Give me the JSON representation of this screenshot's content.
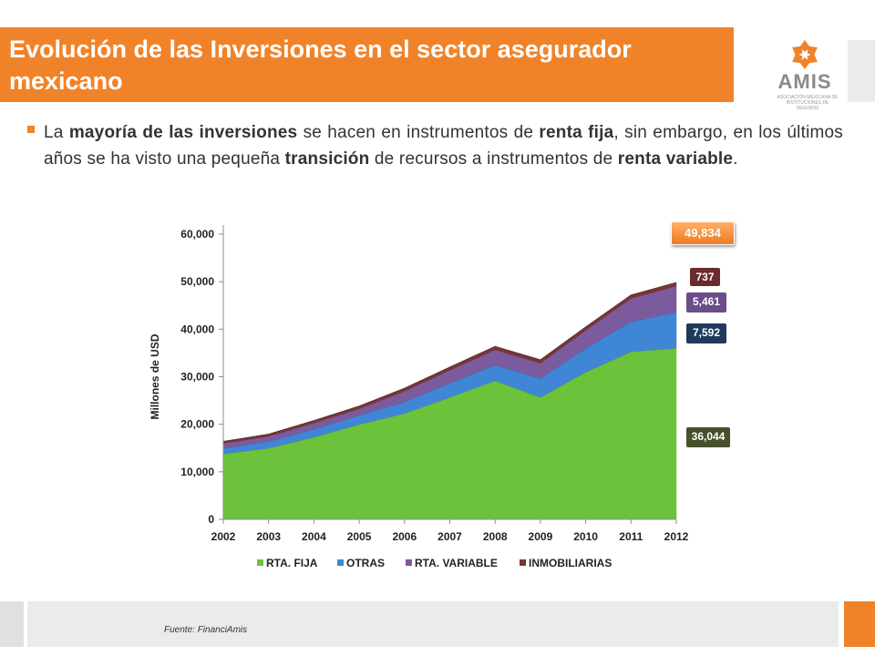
{
  "slide": {
    "title": "Evolución de las Inversiones en el sector asegurador mexicano",
    "bullet": {
      "t1": "La ",
      "t2": "mayoría de las inversiones",
      "t3": " se hacen en instrumentos de ",
      "t4": "renta fija",
      "t5": ", sin embargo, en los últimos años se ha visto una pequeña ",
      "t6": "transición",
      "t7": " de recursos a instrumentos de ",
      "t8": "renta variable",
      "t9": "."
    },
    "source": "Fuente: FinanciAmis"
  },
  "logo": {
    "name": "AMIS",
    "subtitle": "ASOCIACIÓN MEXICANA DE INSTITUCIONES DE SEGUROS",
    "icon": "amis-logo-icon",
    "color": "#f0832a"
  },
  "colors": {
    "accent": "#f0832a",
    "fija": "#6cc23a",
    "otras": "#3f86d6",
    "variable": "#7b5b9e",
    "inmobiliarias": "#7a3535"
  },
  "callouts": {
    "total": "49,834",
    "inmobiliarias": "737",
    "variable": "5,461",
    "otras": "7,592",
    "fija": "36,044"
  },
  "chart_data": {
    "type": "area",
    "stacked": true,
    "x": [
      "2002",
      "2003",
      "2004",
      "2005",
      "2006",
      "2007",
      "2008",
      "2009",
      "2010",
      "2011",
      "2012"
    ],
    "series": [
      {
        "name": "RTA. FIJA",
        "color": "#6cc23a",
        "values": [
          13800,
          15000,
          17300,
          20000,
          22300,
          25700,
          29200,
          25700,
          31000,
          35300,
          36044
        ]
      },
      {
        "name": "OTRAS",
        "color": "#3f86d6",
        "values": [
          1200,
          1400,
          1700,
          1900,
          2400,
          3000,
          3300,
          4000,
          5000,
          6300,
          7592
        ]
      },
      {
        "name": "RTA. VARIABLE",
        "color": "#7b5b9e",
        "values": [
          1000,
          1100,
          1300,
          1400,
          2300,
          2700,
          3200,
          3200,
          3800,
          4900,
          5461
        ]
      },
      {
        "name": "INMOBILIARIAS",
        "color": "#7a3535",
        "values": [
          400,
          450,
          500,
          550,
          600,
          650,
          700,
          680,
          700,
          720,
          737
        ]
      }
    ],
    "yticks": [
      "0",
      "10,000",
      "20,000",
      "30,000",
      "40,000",
      "50,000",
      "60,000"
    ],
    "ylabel": "Millones de USD",
    "xlabel": "",
    "ylim": [
      0,
      60000
    ],
    "legend_position": "bottom",
    "grid": false
  }
}
